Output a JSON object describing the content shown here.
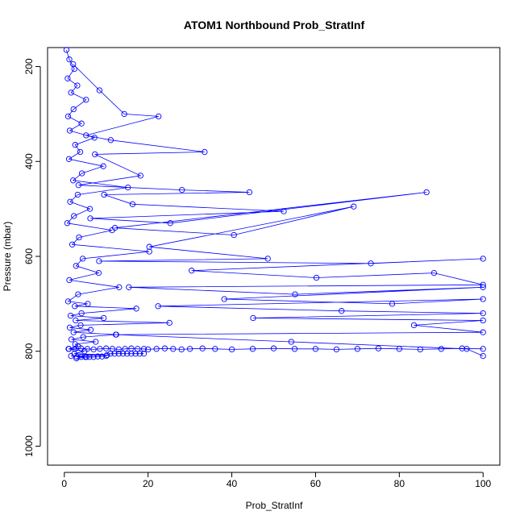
{
  "chart_data": {
    "type": "line",
    "title": "ATOM1 Northbound Prob_StratInf",
    "xlabel": "Prob_StratInf",
    "ylabel": "Pressure (mbar)",
    "xlim": [
      -4,
      104
    ],
    "ylim": [
      1040,
      160
    ],
    "y_inverted": true,
    "x_ticks": [
      0,
      20,
      40,
      60,
      80,
      100
    ],
    "y_ticks": [
      200,
      400,
      600,
      800,
      1000
    ],
    "grid": false,
    "series_color": "#0000ff",
    "marker": "open-circle",
    "series": [
      {
        "x": [
          0.5,
          1.2,
          2.4,
          0.8,
          3.1,
          1.6,
          5.2,
          2.2,
          0.9,
          4.1,
          1.3,
          7.2,
          2.6,
          3.8,
          1.1,
          9.3,
          4.2,
          2.1,
          15.2,
          3.2,
          1.4,
          6.1,
          2.3,
          0.7,
          11.4,
          3.5,
          1.9,
          20.3,
          4.4,
          2.8,
          8.2,
          1.2,
          13.1,
          3.3,
          0.9,
          5.6,
          2.5,
          17.2,
          4.1,
          1.5,
          9.4,
          2.7,
          25.1,
          3.9,
          1.3,
          6.3,
          2.2,
          12.4,
          4.5,
          1.7,
          7.5,
          2.6,
          3.3,
          1.1,
          4.8,
          2.4,
          10.2,
          1.6,
          5.3,
          2.9
        ],
        "y": [
          165,
          185,
          205,
          225,
          240,
          255,
          270,
          290,
          305,
          320,
          335,
          350,
          365,
          380,
          395,
          410,
          425,
          440,
          455,
          470,
          485,
          500,
          515,
          530,
          545,
          560,
          575,
          590,
          605,
          620,
          635,
          650,
          665,
          680,
          695,
          700,
          705,
          710,
          720,
          725,
          730,
          735,
          740,
          745,
          750,
          755,
          760,
          765,
          770,
          775,
          780,
          785,
          790,
          795,
          800,
          805,
          808,
          810,
          812,
          815
        ]
      },
      {
        "x": [
          2.1,
          8.4,
          14.3,
          22.5,
          5.2,
          11.1,
          33.5,
          7.3,
          18.2,
          3.4,
          28.1,
          44.2,
          9.5,
          16.3,
          52.4,
          6.2,
          25.3,
          86.5,
          12.1,
          40.5,
          69.1,
          20.3,
          48.6,
          8.3,
          73.2,
          100,
          30.4,
          60.2,
          88.3,
          100,
          15.4,
          55.1,
          100,
          38.2,
          78.3,
          100,
          22.4,
          66.2,
          100,
          45.1,
          100,
          83.5,
          100,
          12.3,
          54.2,
          96.1,
          100
        ],
        "y": [
          195,
          250,
          300,
          305,
          345,
          355,
          380,
          385,
          430,
          450,
          460,
          465,
          470,
          490,
          505,
          520,
          530,
          465,
          540,
          555,
          495,
          580,
          605,
          610,
          615,
          605,
          630,
          645,
          635,
          660,
          665,
          680,
          665,
          690,
          700,
          690,
          705,
          715,
          720,
          730,
          735,
          745,
          760,
          765,
          780,
          795,
          810
        ]
      },
      {
        "x": [
          1,
          2.5,
          4,
          5.5,
          7,
          8.5,
          10,
          11.5,
          13,
          14.5,
          16,
          17.5,
          19,
          20,
          22,
          24,
          26,
          28,
          30,
          33,
          36,
          40,
          45,
          50,
          55,
          60,
          65,
          70,
          75,
          80,
          85,
          90,
          95,
          100
        ],
        "y": [
          795,
          795,
          794,
          795,
          796,
          795,
          794,
          795,
          796,
          795,
          794,
          795,
          795,
          796,
          795,
          794,
          795,
          796,
          795,
          794,
          795,
          796,
          795,
          794,
          795,
          795,
          796,
          795,
          794,
          795,
          796,
          795,
          794,
          795
        ]
      },
      {
        "x": [
          3,
          4,
          5,
          6,
          7,
          8,
          9,
          10,
          11,
          12,
          13,
          14,
          15,
          16,
          17,
          18,
          19
        ],
        "y": [
          812,
          812,
          812,
          812,
          812,
          811,
          811,
          810,
          805,
          805,
          805,
          805,
          805,
          805,
          805,
          805,
          805
        ]
      }
    ]
  }
}
